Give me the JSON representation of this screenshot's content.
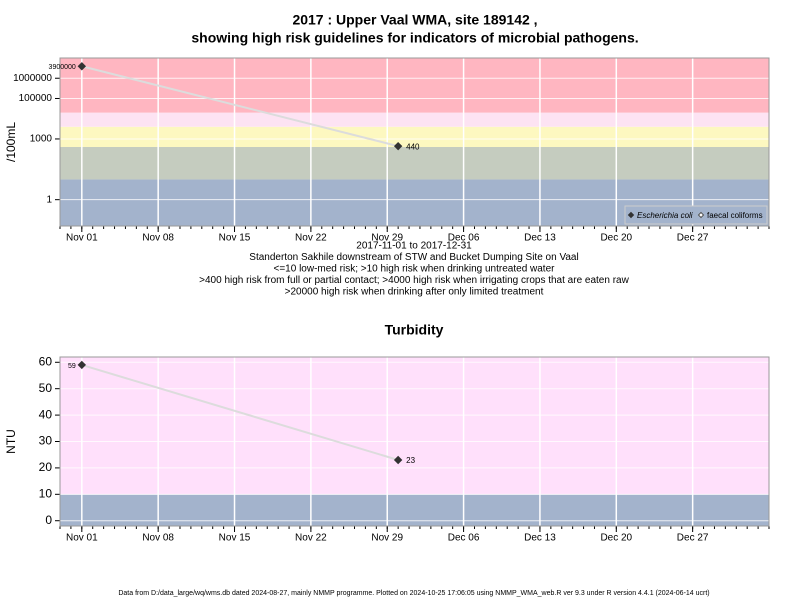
{
  "chart_data": [
    {
      "type": "line",
      "title": "2017 : Upper Vaal WMA, site 189142 ,",
      "subtitle": "showing high risk guidelines for indicators of microbial pathogens.",
      "y_label": "/100mL",
      "log_y": true,
      "x": [
        "2017-11-01",
        "2017-11-30"
      ],
      "xlim": [
        "2017-10-30",
        "2018-01-03"
      ],
      "xticks": [
        {
          "value": "2017-11-01",
          "label": "Nov 01"
        },
        {
          "value": "2017-11-08",
          "label": "Nov 08"
        },
        {
          "value": "2017-11-15",
          "label": "Nov 15"
        },
        {
          "value": "2017-11-22",
          "label": "Nov 22"
        },
        {
          "value": "2017-11-29",
          "label": "Nov 29"
        },
        {
          "value": "2017-12-06",
          "label": "Dec 06"
        },
        {
          "value": "2017-12-13",
          "label": "Dec 13"
        },
        {
          "value": "2017-12-20",
          "label": "Dec 20"
        },
        {
          "value": "2017-12-27",
          "label": "Dec 27"
        }
      ],
      "ylim": [
        0.05,
        10000000
      ],
      "yticks": [
        1,
        1000,
        100000,
        1000000
      ],
      "bands": [
        {
          "from": 0.05,
          "to": 10,
          "color": "#a3b3cc"
        },
        {
          "from": 10,
          "to": 400,
          "color": "#c5ccbf"
        },
        {
          "from": 400,
          "to": 4000,
          "color": "#fdf8c0"
        },
        {
          "from": 4000,
          "to": 20000,
          "color": "#fde3f3"
        },
        {
          "from": 20000,
          "to": 10000000,
          "color": "#ffb6c1"
        }
      ],
      "series": [
        {
          "name": "Escherichia coli",
          "color": "#333333",
          "marker": "filled",
          "values": [
            3900000,
            440
          ]
        },
        {
          "name": "faecal coliforms",
          "color": "#555555",
          "marker": "open",
          "values": [
            null,
            null
          ]
        }
      ],
      "legend": "bottom-right",
      "notes": [
        "2017-11-01 to 2017-12-31",
        "Standerton Sakhile downstream of STW and Bucket Dumping Site on Vaal",
        "<=10 low-med risk; >10 high risk when drinking untreated water",
        ">400 high risk from full or partial contact; >4000 high risk when irrigating crops that are eaten raw",
        ">20000 high risk when drinking after only limited treatment"
      ]
    },
    {
      "type": "line",
      "title": "Turbidity",
      "y_label": "NTU",
      "log_y": false,
      "x": [
        "2017-11-01",
        "2017-11-30"
      ],
      "xlim": [
        "2017-10-30",
        "2018-01-03"
      ],
      "xticks": [
        {
          "value": "2017-11-01",
          "label": "Nov 01"
        },
        {
          "value": "2017-11-08",
          "label": "Nov 08"
        },
        {
          "value": "2017-11-15",
          "label": "Nov 15"
        },
        {
          "value": "2017-11-22",
          "label": "Nov 22"
        },
        {
          "value": "2017-11-29",
          "label": "Nov 29"
        },
        {
          "value": "2017-12-06",
          "label": "Dec 06"
        },
        {
          "value": "2017-12-13",
          "label": "Dec 13"
        },
        {
          "value": "2017-12-20",
          "label": "Dec 20"
        },
        {
          "value": "2017-12-27",
          "label": "Dec 27"
        }
      ],
      "ylim": [
        -2,
        62
      ],
      "yticks": [
        0,
        10,
        20,
        30,
        40,
        50,
        60
      ],
      "bands": [
        {
          "from": -2,
          "to": 10,
          "color": "#a3b3cc"
        },
        {
          "from": 10,
          "to": 62,
          "color": "#ffe0fb"
        }
      ],
      "series": [
        {
          "name": "Turbidity",
          "color": "#333333",
          "marker": "filled",
          "values": [
            59,
            23
          ]
        }
      ]
    }
  ],
  "footer": "Data from D:/data_large/wq/wms.db dated 2024-08-27, mainly NMMP programme. Plotted on 2024-10-25 17:06:05 using NMMP_WMA_web.R ver 9.3 under R version 4.4.1 (2024-06-14 ucrt)"
}
